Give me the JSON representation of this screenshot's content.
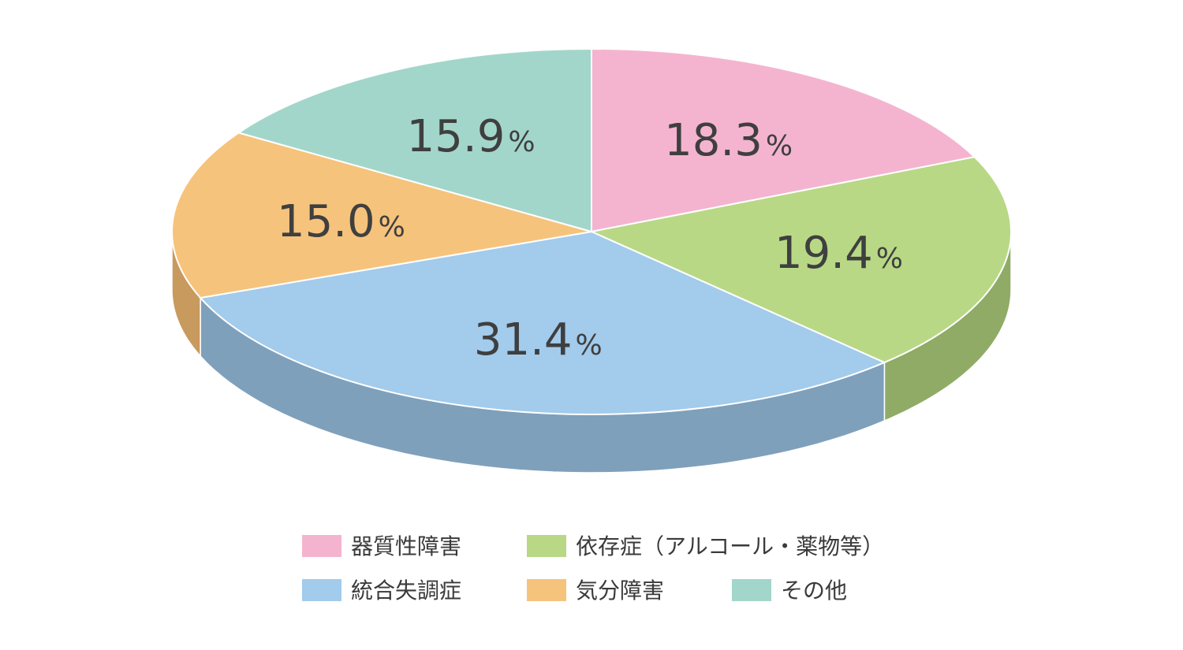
{
  "chart_data": {
    "type": "pie",
    "style": "3d",
    "categories": [
      "器質性障害",
      "依存症（アルコール・薬物等）",
      "統合失調症",
      "気分障害",
      "その他"
    ],
    "values": [
      18.3,
      19.4,
      31.4,
      15.0,
      15.9
    ],
    "value_labels": [
      "18.3",
      "19.4",
      "31.4",
      "15.0",
      "15.9"
    ],
    "unit_label": "%",
    "colors": [
      "#f4b4cf",
      "#b8d886",
      "#a2cbec",
      "#f6c37c",
      "#a3d6ca"
    ],
    "side_colors": [
      "#c98fa8",
      "#8fab66",
      "#7fa0bb",
      "#c89a5e",
      "#7fac9f"
    ],
    "legend_placement": "bottom",
    "legend_rows": [
      [
        0,
        1
      ],
      [
        2,
        3,
        4
      ]
    ]
  }
}
